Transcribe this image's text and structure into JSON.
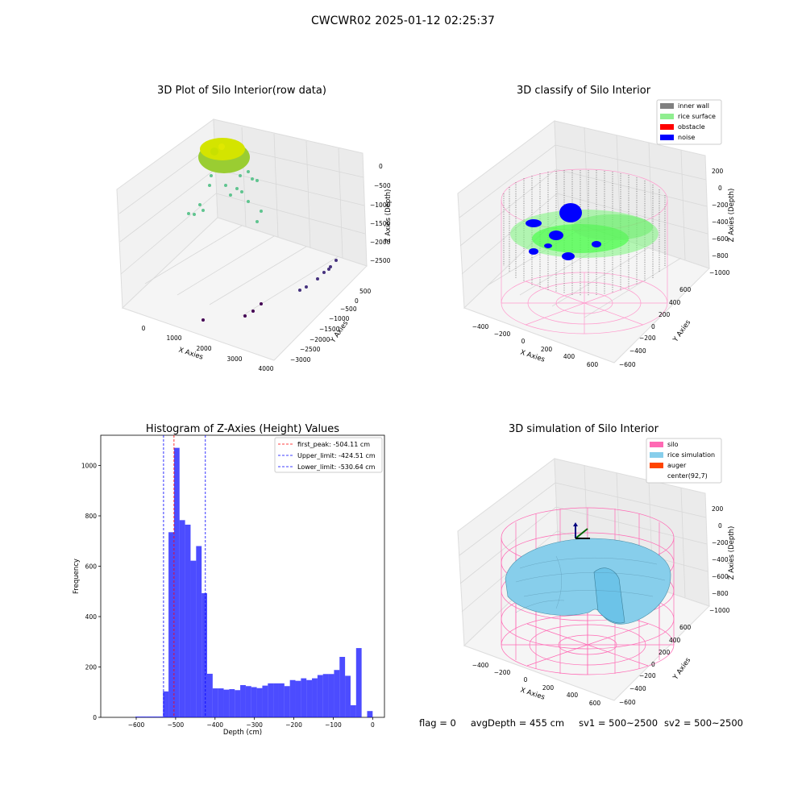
{
  "suptitle": "CWCWR02 2025-01-12 02:25:37",
  "footer": {
    "flag": "flag = 0",
    "avg": "avgDepth = 455 cm",
    "sv1": "sv1 = 500~2500",
    "sv2": "sv2 = 500~2500"
  },
  "chart_data": [
    {
      "type": "scatter",
      "title": "3D Plot of Silo Interior(row data)",
      "xlabel": "X Axies",
      "ylabel": "Y Axies",
      "zlabel": "Z Axies (Depth)",
      "x_ticks": [
        "0",
        "1000",
        "2000",
        "3000",
        "4000"
      ],
      "y_ticks": [
        "500",
        "0",
        "−500",
        "−1000",
        "−1500",
        "−2000",
        "−2500",
        "−3000"
      ],
      "z_ticks": [
        "0",
        "−500",
        "−1000",
        "−1500",
        "−2000",
        "−2500"
      ]
    },
    {
      "type": "scatter",
      "title": "3D classify of Silo Interior",
      "xlabel": "X Axies",
      "ylabel": "Y Axies",
      "zlabel": "Z Axies (Depth)",
      "x_ticks": [
        "−400",
        "−200",
        "0",
        "200",
        "400",
        "600"
      ],
      "y_ticks": [
        "600",
        "400",
        "200",
        "0",
        "−200",
        "−400",
        "−600"
      ],
      "z_ticks": [
        "200",
        "0",
        "−200",
        "−400",
        "−600",
        "−800",
        "−1000"
      ],
      "legend": [
        {
          "label": "inner wall",
          "color": "#808080"
        },
        {
          "label": "rice surface",
          "color": "#90ee90"
        },
        {
          "label": "obstacle",
          "color": "#ff0000"
        },
        {
          "label": "noise",
          "color": "#0000ff"
        }
      ]
    },
    {
      "type": "bar",
      "title": "Histogram of Z-Axies (Height) Values",
      "xlabel": "Depth (cm)",
      "ylabel": "Frequency",
      "xlim": [
        -690,
        30
      ],
      "ylim": [
        0,
        1120
      ],
      "x_ticks": [
        -600,
        -500,
        -400,
        -300,
        -200,
        -100,
        0
      ],
      "y_ticks": [
        0,
        200,
        400,
        600,
        800,
        1000
      ],
      "bin_width": 14,
      "bins_start": [
        -602,
        -588,
        -574,
        -560,
        -546,
        -532,
        -518,
        -504,
        -490,
        -476,
        -462,
        -448,
        -434,
        -420,
        -406,
        -392,
        -378,
        -364,
        -350,
        -336,
        -322,
        -308,
        -294,
        -280,
        -266,
        -252,
        -238,
        -224,
        -210,
        -196,
        -182,
        -168,
        -154,
        -140,
        -126,
        -112,
        -98,
        -84,
        -70,
        -56,
        -42,
        -28,
        -14
      ],
      "values": [
        3,
        3,
        3,
        3,
        3,
        103,
        735,
        1070,
        783,
        765,
        622,
        680,
        493,
        173,
        115,
        115,
        110,
        112,
        108,
        128,
        124,
        120,
        116,
        126,
        135,
        135,
        135,
        124,
        148,
        145,
        155,
        148,
        155,
        168,
        172,
        172,
        188,
        240,
        165,
        48,
        275,
        0,
        25
      ],
      "color": "#0000ff",
      "vlines": [
        {
          "label": "first_peak: -504.11 cm",
          "x": -504.11,
          "color": "#ff0000"
        },
        {
          "label": "Upper_limit: -424.51 cm",
          "x": -424.51,
          "color": "#0000ff"
        },
        {
          "label": "Lower_limit: -530.64 cm",
          "x": -530.64,
          "color": "#0000ff"
        }
      ]
    },
    {
      "type": "scatter",
      "title": "3D simulation of Silo Interior",
      "xlabel": "X Axies",
      "ylabel": "Y Axies",
      "zlabel": "Z Axies (Depth)",
      "x_ticks": [
        "−400",
        "−200",
        "0",
        "200",
        "400",
        "600"
      ],
      "y_ticks": [
        "600",
        "400",
        "200",
        "0",
        "−200",
        "−400",
        "−600"
      ],
      "z_ticks": [
        "200",
        "0",
        "−200",
        "−400",
        "−600",
        "−800",
        "−1000"
      ],
      "legend": [
        {
          "label": "silo",
          "color": "#ff69b4"
        },
        {
          "label": "rice simulation",
          "color": "#87ceeb"
        },
        {
          "label": "auger",
          "color": "#ff4500"
        },
        {
          "label": "center(92,7)",
          "color": ""
        }
      ]
    }
  ]
}
